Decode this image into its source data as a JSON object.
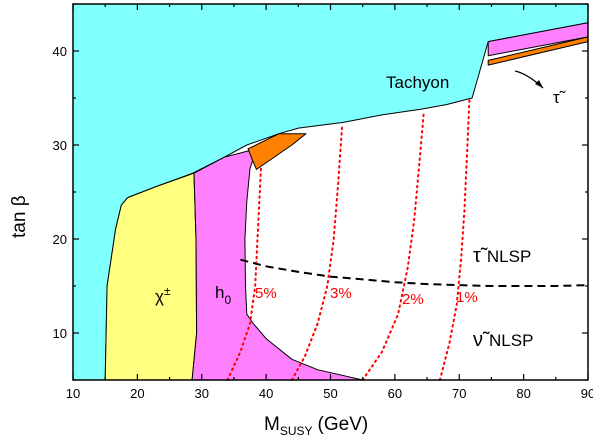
{
  "chart_data": {
    "type": "area",
    "xlabel_main": "M",
    "xlabel_sub": "SUSY",
    "xlabel_unit": "(GeV)",
    "ylabel_main": "tan ",
    "ylabel_symbol": "β",
    "xlim": [
      10,
      90
    ],
    "ylim": [
      5,
      45
    ],
    "xticks": [
      10,
      20,
      30,
      40,
      50,
      60,
      70,
      80,
      90
    ],
    "yticks": [
      10,
      20,
      30,
      40
    ],
    "colors": {
      "tachyon": "#80ffff",
      "chargino": "#ffff80",
      "higgs": "#ff80ff",
      "stau_lsp": "#ff8000",
      "allowed": "#ffffff",
      "contours": "#ff0000",
      "nlsp_boundary": "#000000"
    },
    "regions": [
      {
        "name": "tachyon",
        "label": "Tachyon",
        "polygon": [
          [
            10,
            5
          ],
          [
            15,
            5
          ],
          [
            15.3,
            15
          ],
          [
            16.6,
            21
          ],
          [
            17.5,
            23.6
          ],
          [
            18.5,
            24.4
          ],
          [
            23,
            25.6
          ],
          [
            28.6,
            27
          ],
          [
            33.5,
            28.7
          ],
          [
            37,
            30
          ],
          [
            42,
            31.2
          ],
          [
            45,
            31.8
          ],
          [
            52,
            32.4
          ],
          [
            58,
            33.2
          ],
          [
            64,
            33.8
          ],
          [
            68,
            34.3
          ],
          [
            72,
            35
          ],
          [
            74.5,
            41
          ],
          [
            90,
            43
          ],
          [
            90,
            45
          ],
          [
            10,
            45
          ]
        ]
      },
      {
        "name": "chargino",
        "label": "χ±",
        "polygon": [
          [
            15,
            5
          ],
          [
            28.5,
            5
          ],
          [
            29.2,
            10
          ],
          [
            29.1,
            20
          ],
          [
            28.8,
            27
          ],
          [
            23,
            25.6
          ],
          [
            18.5,
            24.4
          ],
          [
            17.5,
            23.6
          ],
          [
            16.6,
            21
          ],
          [
            15.3,
            15
          ]
        ]
      },
      {
        "name": "higgs",
        "label": "h0",
        "polygon": [
          [
            28.5,
            5
          ],
          [
            55,
            5
          ],
          [
            48,
            6.1
          ],
          [
            44,
            7.2
          ],
          [
            40,
            9.4
          ],
          [
            38,
            11
          ],
          [
            37,
            12
          ],
          [
            36.8,
            15
          ],
          [
            36.7,
            20
          ],
          [
            37,
            24
          ],
          [
            37.5,
            27.5
          ],
          [
            38.5,
            29.6
          ],
          [
            33.5,
            28.7
          ],
          [
            28.8,
            27
          ],
          [
            29.1,
            20
          ],
          [
            29.2,
            10
          ]
        ]
      },
      {
        "name": "stau_lsp_low",
        "polygon": [
          [
            38.5,
            27.4
          ],
          [
            44,
            30
          ],
          [
            46.2,
            31.2
          ],
          [
            42,
            31.2
          ],
          [
            37.2,
            29.6
          ],
          [
            37.8,
            28.5
          ]
        ]
      },
      {
        "name": "stau_lsp_high",
        "label": "τ̃",
        "polygon": [
          [
            74.5,
            39
          ],
          [
            90,
            41.5
          ],
          [
            90,
            41
          ],
          [
            74.5,
            38.5
          ]
        ]
      },
      {
        "name": "higgs_high",
        "polygon": [
          [
            74.5,
            41
          ],
          [
            90,
            43
          ],
          [
            90,
            41.5
          ],
          [
            74.5,
            39.5
          ]
        ]
      }
    ],
    "nlsp_boundary": {
      "style": "dashed",
      "x": [
        36,
        40,
        45,
        50,
        55,
        60,
        65,
        70,
        75,
        80,
        85,
        90
      ],
      "y": [
        17.8,
        17.1,
        16.5,
        16.0,
        15.7,
        15.4,
        15.2,
        15.1,
        15.0,
        15.0,
        15.0,
        15.1
      ]
    },
    "fine_tuning_contours": [
      {
        "label": "5%",
        "x": [
          34,
          36,
          37.5,
          38.3,
          38.8,
          39.2
        ],
        "y": [
          5,
          8,
          11,
          15,
          22,
          27.5
        ]
      },
      {
        "label": "3%",
        "x": [
          44,
          46,
          48,
          49.5,
          50.5,
          51.2,
          51.8
        ],
        "y": [
          5,
          7.5,
          11,
          15,
          20,
          26,
          32
        ]
      },
      {
        "label": "2%",
        "x": [
          55,
          58,
          60.5,
          62,
          63,
          63.8,
          64.5
        ],
        "y": [
          5,
          8,
          12,
          17,
          22,
          28,
          33.5
        ]
      },
      {
        "label": "1%",
        "x": [
          67,
          68.5,
          69.6,
          70.3,
          70.8,
          71.2,
          71.6
        ],
        "y": [
          5,
          9,
          13,
          18,
          23,
          29,
          35
        ]
      }
    ],
    "annotations": {
      "tachyon": "Tachyon",
      "chargino_sym": "χ",
      "chargino_sup": "±",
      "higgs_sym": "h",
      "higgs_sub": "0",
      "stau_sym": "τ̃",
      "stau_nlsp": "NLSP",
      "snu_sym": "ν̃",
      "snu_nlsp": "NLSP"
    }
  }
}
